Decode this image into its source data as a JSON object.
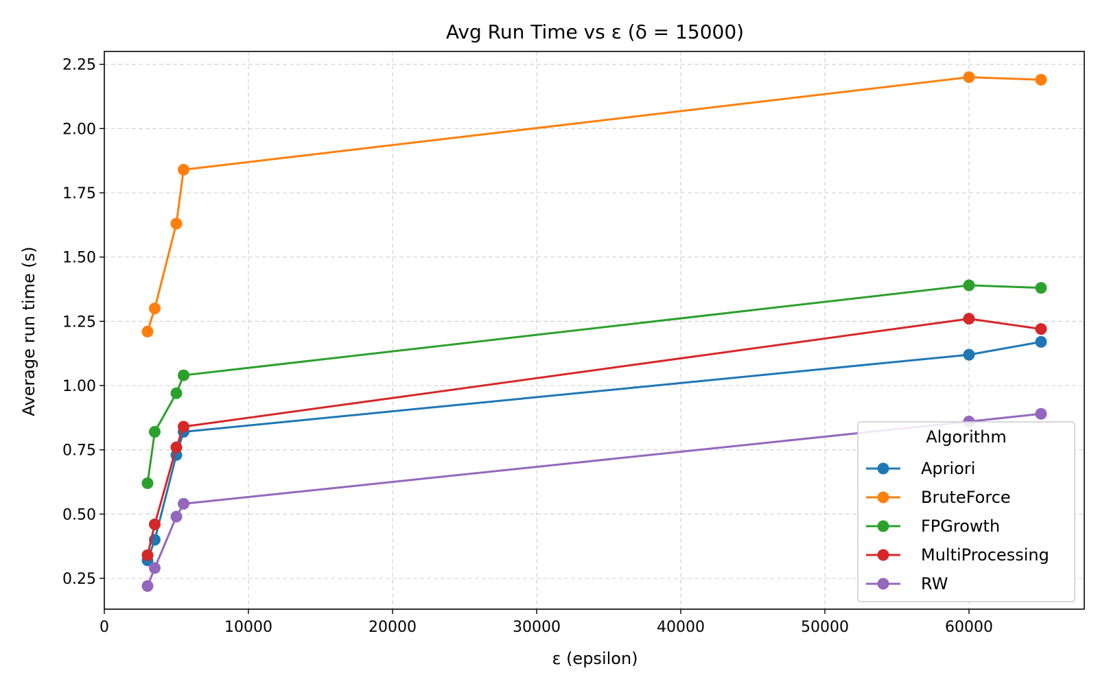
{
  "chart_data": {
    "type": "line",
    "title": "Avg Run Time vs ε (δ = 15000)",
    "xlabel": "ε (epsilon)",
    "ylabel": "Average run time (s)",
    "xlim": [
      0,
      68000
    ],
    "ylim": [
      0.13,
      2.3
    ],
    "xticks": [
      0,
      10000,
      20000,
      30000,
      40000,
      50000,
      60000
    ],
    "xtick_labels": [
      "0",
      "10000",
      "20000",
      "30000",
      "40000",
      "50000",
      "60000"
    ],
    "yticks": [
      0.25,
      0.5,
      0.75,
      1.0,
      1.25,
      1.5,
      1.75,
      2.0,
      2.25
    ],
    "ytick_labels": [
      "0.25",
      "0.50",
      "0.75",
      "1.00",
      "1.25",
      "1.50",
      "1.75",
      "2.00",
      "2.25"
    ],
    "grid": true,
    "legend": {
      "title": "Algorithm",
      "placement": "lower-right"
    },
    "x": [
      3000,
      3500,
      5000,
      5500,
      60000,
      65000
    ],
    "series": [
      {
        "name": "Apriori",
        "color": "#1f77b4",
        "values": [
          0.32,
          0.4,
          0.73,
          0.82,
          1.12,
          1.17
        ]
      },
      {
        "name": "BruteForce",
        "color": "#ff7f0e",
        "values": [
          1.21,
          1.3,
          1.63,
          1.84,
          2.2,
          2.19
        ]
      },
      {
        "name": "FPGrowth",
        "color": "#2ca02c",
        "values": [
          0.62,
          0.82,
          0.97,
          1.04,
          1.39,
          1.38
        ]
      },
      {
        "name": "MultiProcessing",
        "color": "#d62728",
        "values": [
          0.34,
          0.46,
          0.76,
          0.84,
          1.26,
          1.22
        ]
      },
      {
        "name": "RW",
        "color": "#9467bd",
        "values": [
          0.22,
          0.29,
          0.49,
          0.54,
          0.86,
          0.89
        ]
      }
    ]
  }
}
